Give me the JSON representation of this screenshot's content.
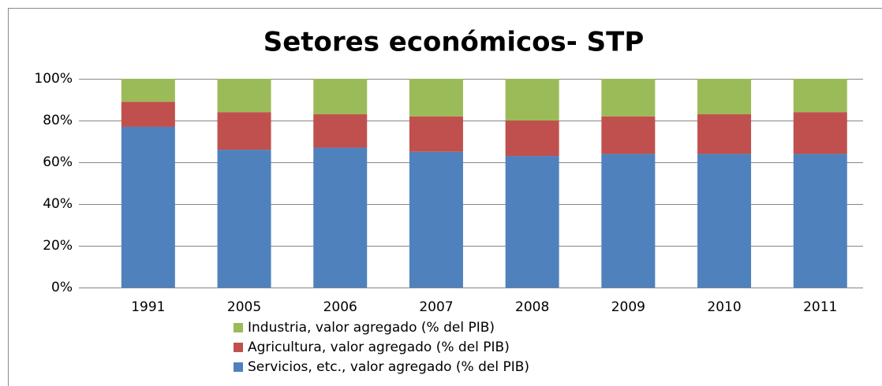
{
  "chart_data": {
    "type": "stacked_bar",
    "title": "Setores económicos- STP",
    "categories": [
      "1991",
      "2005",
      "2006",
      "2007",
      "2008",
      "2009",
      "2010",
      "2011"
    ],
    "series": [
      {
        "name": "Servicios, etc., valor agregado (% del PIB)",
        "color": "#4f81bd",
        "values": [
          77,
          66,
          67,
          65,
          63,
          64,
          64,
          64
        ]
      },
      {
        "name": "Agricultura, valor agregado (% del PIB)",
        "color": "#c0504d",
        "values": [
          12,
          18,
          16,
          17,
          17,
          18,
          19,
          20
        ]
      },
      {
        "name": "Industria, valor agregado (% del PIB)",
        "color": "#9bbb59",
        "values": [
          11,
          16,
          17,
          18,
          20,
          18,
          17,
          16
        ]
      }
    ],
    "ylim": [
      0,
      100
    ],
    "yticks": [
      {
        "value": 0,
        "label": "0%"
      },
      {
        "value": 20,
        "label": "20%"
      },
      {
        "value": 40,
        "label": "40%"
      },
      {
        "value": 60,
        "label": "60%"
      },
      {
        "value": 80,
        "label": "80%"
      },
      {
        "value": 100,
        "label": "100%"
      }
    ],
    "grid": true,
    "legend": "bottom"
  }
}
